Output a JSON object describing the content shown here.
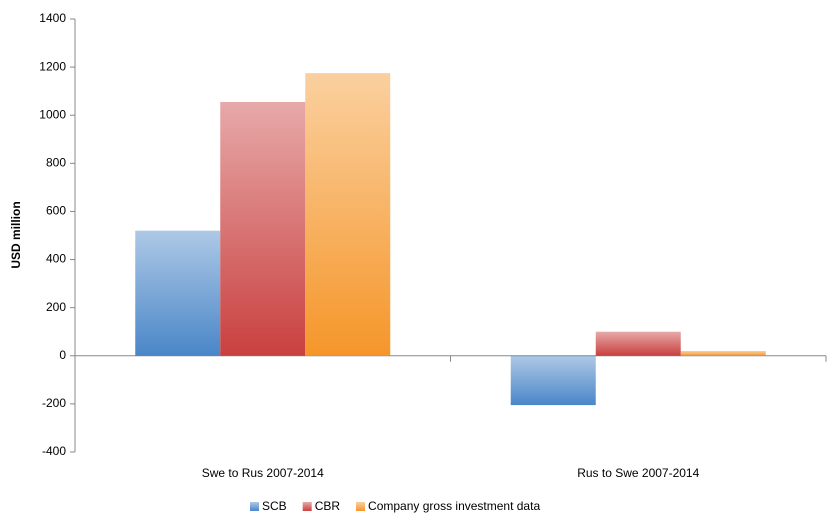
{
  "chart_data": {
    "type": "bar",
    "y_label": "USD million",
    "categories": [
      "Swe to Rus 2007-2014",
      "Rus to Swe 2007-2014"
    ],
    "series": [
      {
        "name": "SCB",
        "color": "#4a86c8",
        "values": [
          520,
          -205
        ]
      },
      {
        "name": "CBR",
        "color": "#c9403f",
        "values": [
          1055,
          100
        ]
      },
      {
        "name": "Company gross investment data",
        "color": "#f5962a",
        "values": [
          1175,
          20
        ]
      }
    ],
    "ylim": [
      -400,
      1400
    ],
    "yticks": [
      -400,
      -200,
      0,
      200,
      400,
      600,
      800,
      1000,
      1200,
      1400
    ],
    "grid": false,
    "legend": "bottom"
  }
}
